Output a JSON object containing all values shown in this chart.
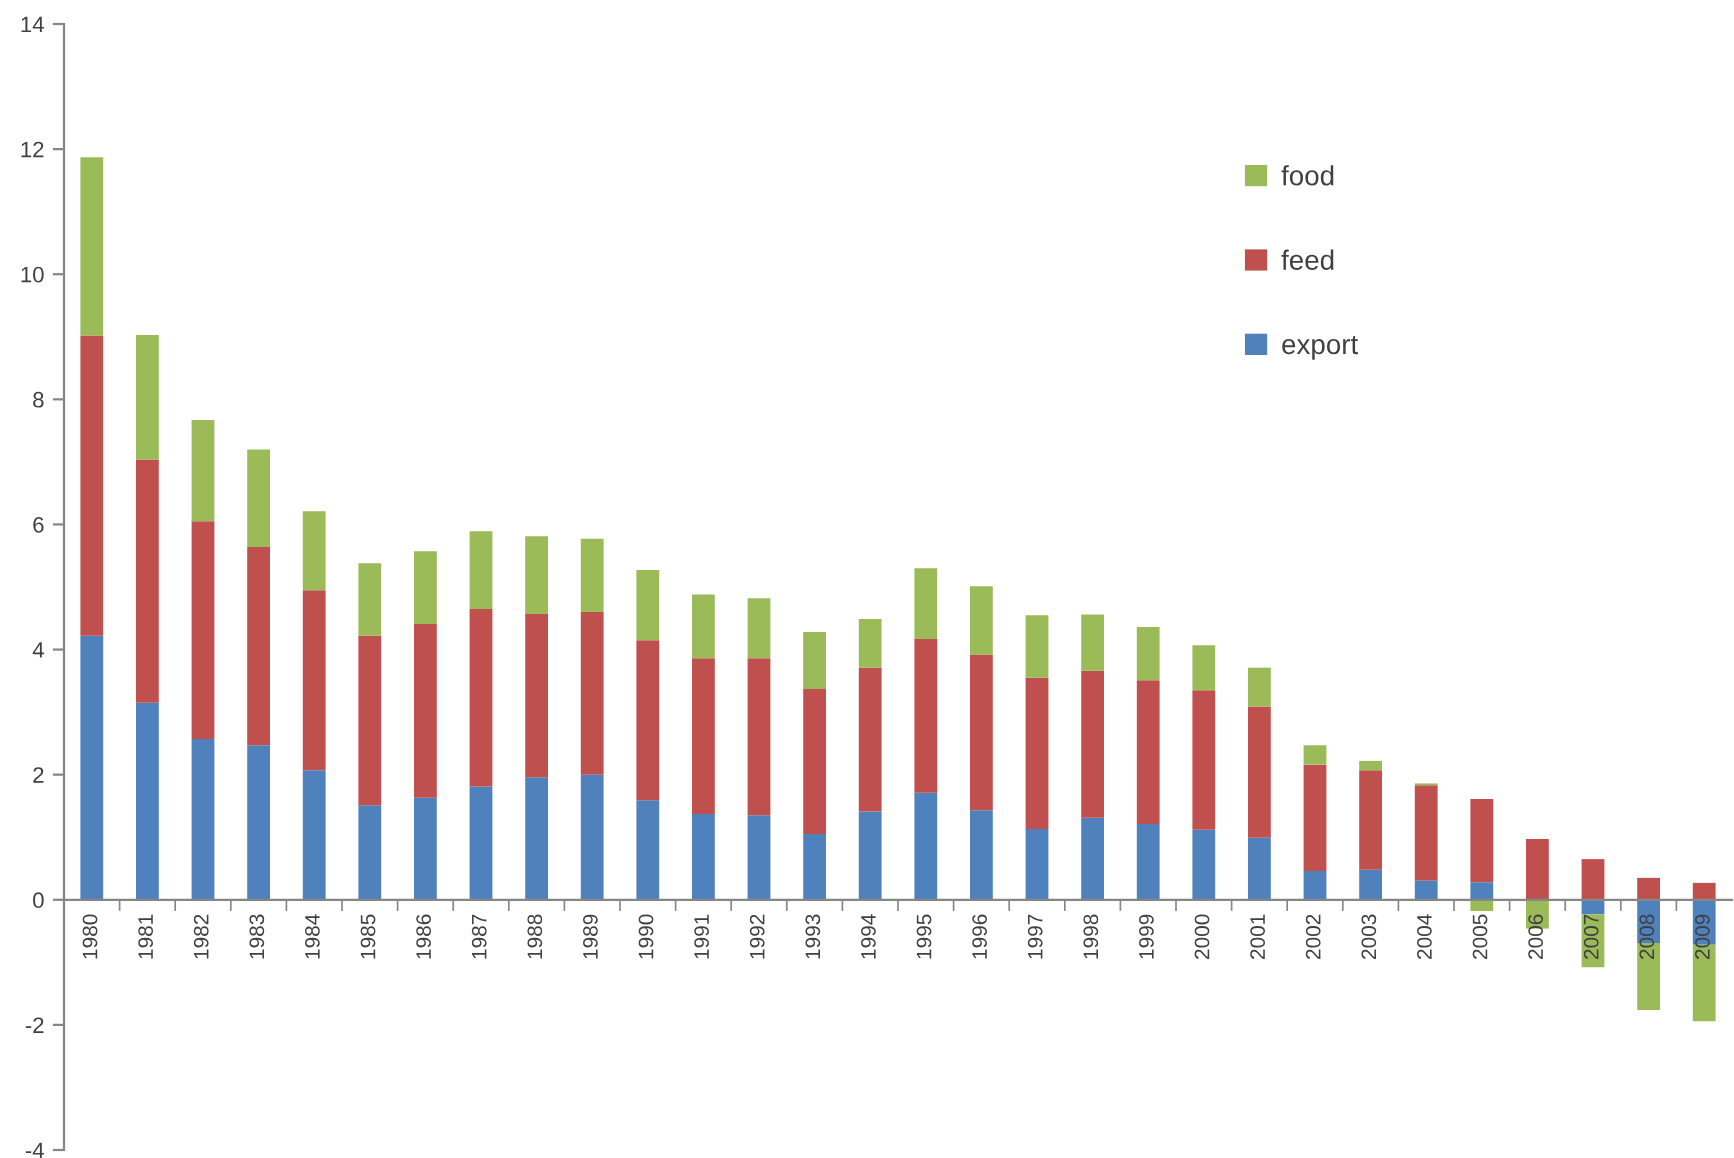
{
  "chart_data": {
    "type": "bar",
    "stacked": true,
    "categories": [
      "1980",
      "1981",
      "1982",
      "1983",
      "1984",
      "1985",
      "1986",
      "1987",
      "1988",
      "1989",
      "1990",
      "1991",
      "1992",
      "1993",
      "1994",
      "1995",
      "1996",
      "1997",
      "1998",
      "1999",
      "2000",
      "2001",
      "2002",
      "2003",
      "2004",
      "2005",
      "2006",
      "2007",
      "2008",
      "2009"
    ],
    "series": [
      {
        "name": "export",
        "color": "#4f81bd",
        "values": [
          4.22,
          3.15,
          2.57,
          2.47,
          2.07,
          1.51,
          1.63,
          1.81,
          1.96,
          2.0,
          1.59,
          1.37,
          1.35,
          1.05,
          1.41,
          1.71,
          1.43,
          1.13,
          1.31,
          1.21,
          1.12,
          0.99,
          0.46,
          0.48,
          0.31,
          0.28,
          0,
          -0.23,
          -0.69,
          -0.72
        ]
      },
      {
        "name": "feed",
        "color": "#c0504d",
        "values": [
          4.8,
          3.89,
          3.48,
          3.17,
          2.88,
          2.71,
          2.78,
          2.84,
          2.61,
          2.6,
          2.56,
          2.49,
          2.51,
          2.32,
          2.3,
          2.46,
          2.49,
          2.42,
          2.35,
          2.3,
          2.23,
          2.1,
          1.7,
          1.59,
          1.52,
          1.33,
          0.97,
          0.65,
          0.35,
          0.27
        ]
      },
      {
        "name": "food",
        "color": "#9bbb59",
        "values": [
          2.85,
          1.99,
          1.62,
          1.56,
          1.26,
          1.16,
          1.16,
          1.24,
          1.24,
          1.17,
          1.12,
          1.02,
          0.96,
          0.91,
          0.78,
          1.13,
          1.09,
          1.0,
          0.9,
          0.85,
          0.72,
          0.62,
          0.31,
          0.15,
          0.03,
          -0.18,
          -0.46,
          -0.85,
          -1.07,
          -1.22
        ]
      }
    ],
    "ylim": [
      -4,
      14
    ],
    "yticks": [
      -4,
      -2,
      0,
      2,
      4,
      6,
      8,
      10,
      12,
      14
    ],
    "legend": "top right",
    "grid": false
  }
}
